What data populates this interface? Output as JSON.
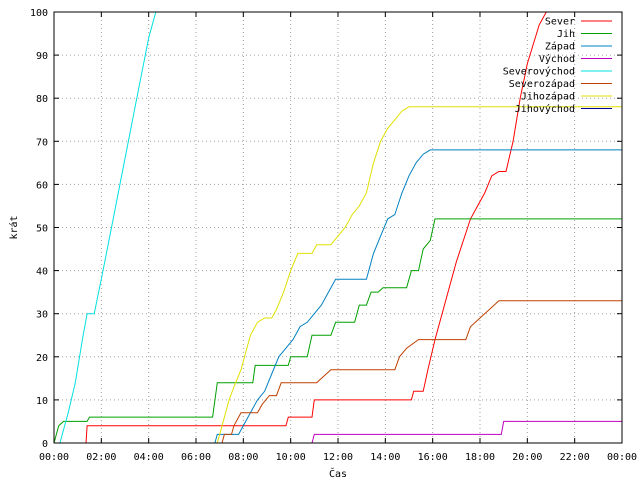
{
  "chart_data": {
    "type": "line",
    "xlabel": "Čas",
    "ylabel": "krát",
    "xlim": [
      0,
      24
    ],
    "ylim": [
      0,
      100
    ],
    "xticks": [
      0,
      2,
      4,
      6,
      8,
      10,
      12,
      14,
      16,
      18,
      20,
      22,
      24
    ],
    "xtick_labels": [
      "00:00",
      "02:00",
      "04:00",
      "06:00",
      "08:00",
      "10:00",
      "12:00",
      "14:00",
      "16:00",
      "18:00",
      "20:00",
      "22:00",
      "00:00"
    ],
    "yticks": [
      0,
      10,
      20,
      30,
      40,
      50,
      60,
      70,
      80,
      90,
      100
    ],
    "grid": true,
    "legend": "top-right",
    "series": [
      {
        "name": "Sever",
        "color": "#ff0000",
        "points": [
          [
            1.35,
            0
          ],
          [
            1.4,
            4
          ],
          [
            9.8,
            4
          ],
          [
            9.9,
            6
          ],
          [
            10.9,
            6
          ],
          [
            11,
            10
          ],
          [
            15.1,
            10
          ],
          [
            15.2,
            12
          ],
          [
            15.6,
            12
          ],
          [
            15.8,
            17
          ],
          [
            16.1,
            24
          ],
          [
            16.4,
            30
          ],
          [
            16.7,
            36
          ],
          [
            17.0,
            42
          ],
          [
            17.3,
            47
          ],
          [
            17.6,
            52
          ],
          [
            17.9,
            55
          ],
          [
            18.2,
            58
          ],
          [
            18.5,
            62
          ],
          [
            18.8,
            63
          ],
          [
            19.1,
            63
          ],
          [
            19.4,
            70
          ],
          [
            19.7,
            80
          ],
          [
            20.0,
            88
          ],
          [
            20.5,
            97
          ],
          [
            20.8,
            100
          ]
        ]
      },
      {
        "name": "Jih",
        "color": "#00a000",
        "points": [
          [
            0,
            0
          ],
          [
            0.2,
            4
          ],
          [
            0.4,
            5
          ],
          [
            1.4,
            5
          ],
          [
            1.5,
            6
          ],
          [
            6.7,
            6
          ],
          [
            6.9,
            14
          ],
          [
            8.4,
            14
          ],
          [
            8.5,
            18
          ],
          [
            9.9,
            18
          ],
          [
            10.0,
            20
          ],
          [
            10.7,
            20
          ],
          [
            10.9,
            25
          ],
          [
            11.7,
            25
          ],
          [
            11.9,
            28
          ],
          [
            12.7,
            28
          ],
          [
            12.9,
            32
          ],
          [
            13.2,
            32
          ],
          [
            13.4,
            35
          ],
          [
            13.7,
            35
          ],
          [
            13.9,
            36
          ],
          [
            14.9,
            36
          ],
          [
            15.1,
            40
          ],
          [
            15.4,
            40
          ],
          [
            15.6,
            45
          ],
          [
            15.9,
            47
          ],
          [
            16.1,
            52
          ],
          [
            24,
            52
          ]
        ]
      },
      {
        "name": "Západ",
        "color": "#0080c0",
        "points": [
          [
            6.8,
            0
          ],
          [
            6.9,
            2
          ],
          [
            7.8,
            2
          ],
          [
            8.0,
            4
          ],
          [
            8.3,
            7
          ],
          [
            8.6,
            10
          ],
          [
            8.9,
            12
          ],
          [
            9.2,
            16
          ],
          [
            9.5,
            20
          ],
          [
            9.8,
            22
          ],
          [
            10.1,
            24
          ],
          [
            10.4,
            27
          ],
          [
            10.7,
            28
          ],
          [
            11.0,
            30
          ],
          [
            11.3,
            32
          ],
          [
            11.6,
            35
          ],
          [
            11.9,
            38
          ],
          [
            13.2,
            38
          ],
          [
            13.5,
            44
          ],
          [
            13.8,
            48
          ],
          [
            14.1,
            52
          ],
          [
            14.4,
            53
          ],
          [
            14.7,
            58
          ],
          [
            15.0,
            62
          ],
          [
            15.3,
            65
          ],
          [
            15.6,
            67
          ],
          [
            15.9,
            68
          ],
          [
            24,
            68
          ]
        ]
      },
      {
        "name": "Východ",
        "color": "#c000c0",
        "points": [
          [
            10.9,
            0
          ],
          [
            11.0,
            2
          ],
          [
            18.9,
            2
          ],
          [
            19.0,
            5
          ],
          [
            24,
            5
          ]
        ]
      },
      {
        "name": "Severovýchod",
        "color": "#00e0e0",
        "points": [
          [
            0.25,
            0
          ],
          [
            0.6,
            7
          ],
          [
            0.9,
            14
          ],
          [
            1.2,
            24
          ],
          [
            1.4,
            30
          ],
          [
            1.7,
            30
          ],
          [
            2.0,
            38
          ],
          [
            2.5,
            52
          ],
          [
            3.0,
            66
          ],
          [
            3.5,
            80
          ],
          [
            4.0,
            94
          ],
          [
            4.3,
            100
          ]
        ]
      },
      {
        "name": "Severozápad",
        "color": "#c04000",
        "points": [
          [
            7.1,
            0
          ],
          [
            7.2,
            2
          ],
          [
            7.5,
            2
          ],
          [
            7.6,
            4
          ],
          [
            7.9,
            7
          ],
          [
            8.6,
            7
          ],
          [
            8.8,
            9
          ],
          [
            9.1,
            11
          ],
          [
            9.4,
            11
          ],
          [
            9.6,
            14
          ],
          [
            11.1,
            14
          ],
          [
            11.3,
            15
          ],
          [
            11.7,
            17
          ],
          [
            14.4,
            17
          ],
          [
            14.6,
            20
          ],
          [
            14.9,
            22
          ],
          [
            15.4,
            24
          ],
          [
            17.4,
            24
          ],
          [
            17.6,
            27
          ],
          [
            18.0,
            29
          ],
          [
            18.4,
            31
          ],
          [
            18.8,
            33
          ],
          [
            24,
            33
          ]
        ]
      },
      {
        "name": "Jihozápad",
        "color": "#e0e000",
        "points": [
          [
            6.9,
            0
          ],
          [
            7.0,
            2
          ],
          [
            7.4,
            10
          ],
          [
            7.6,
            13
          ],
          [
            7.9,
            17
          ],
          [
            8.1,
            21
          ],
          [
            8.3,
            25
          ],
          [
            8.6,
            28
          ],
          [
            8.9,
            29
          ],
          [
            9.2,
            29
          ],
          [
            9.4,
            31
          ],
          [
            9.7,
            35
          ],
          [
            10.0,
            40
          ],
          [
            10.3,
            44
          ],
          [
            10.9,
            44
          ],
          [
            11.1,
            46
          ],
          [
            11.7,
            46
          ],
          [
            12.0,
            48
          ],
          [
            12.3,
            50
          ],
          [
            12.6,
            53
          ],
          [
            12.9,
            55
          ],
          [
            13.2,
            58
          ],
          [
            13.5,
            65
          ],
          [
            13.8,
            70
          ],
          [
            14.1,
            73
          ],
          [
            14.4,
            75
          ],
          [
            14.7,
            77
          ],
          [
            15.0,
            78
          ],
          [
            24,
            78
          ]
        ]
      },
      {
        "name": "Jihovýchod",
        "color": "#0000a0",
        "points": []
      }
    ]
  }
}
